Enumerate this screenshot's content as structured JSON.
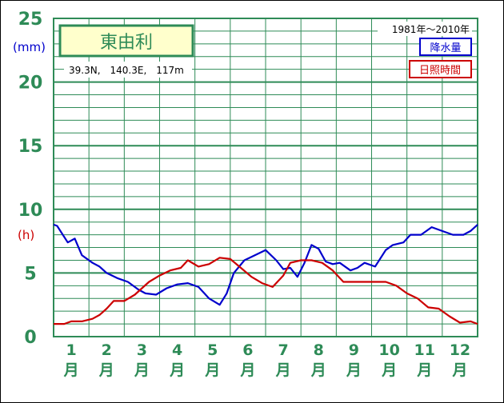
{
  "colors": {
    "grid": "#2e8b57",
    "precipitation": "#0000cc",
    "sunshine": "#cc0000",
    "station_box_fill": "#ffffcc",
    "axis_text": "#2e8b57"
  },
  "chart_data": {
    "type": "line",
    "station_name": "東由利",
    "location": "39.3N,　140.3E,　117m",
    "period": "1981年～2010年",
    "y_unit_precip": "(mm)",
    "y_unit_sunshine": "(h)",
    "ylim": [
      0,
      25
    ],
    "y_ticks": [
      "0",
      "5",
      "10",
      "15",
      "20",
      "25"
    ],
    "months": [
      {
        "num": "1",
        "unit": "月"
      },
      {
        "num": "2",
        "unit": "月"
      },
      {
        "num": "3",
        "unit": "月"
      },
      {
        "num": "4",
        "unit": "月"
      },
      {
        "num": "5",
        "unit": "月"
      },
      {
        "num": "6",
        "unit": "月"
      },
      {
        "num": "7",
        "unit": "月"
      },
      {
        "num": "8",
        "unit": "月"
      },
      {
        "num": "9",
        "unit": "月"
      },
      {
        "num": "10",
        "unit": "月"
      },
      {
        "num": "11",
        "unit": "月"
      },
      {
        "num": "12",
        "unit": "月"
      }
    ],
    "x_range_months": [
      0.5,
      12.5
    ],
    "legend": {
      "precip": "降水量",
      "sunshine": "日照時間"
    },
    "series": [
      {
        "name": "降水量",
        "key": "precip",
        "x": [
          0.5,
          0.6,
          0.9,
          1.1,
          1.3,
          1.6,
          1.8,
          2.0,
          2.3,
          2.6,
          2.9,
          3.1,
          3.4,
          3.7,
          4.0,
          4.3,
          4.6,
          4.9,
          5.2,
          5.4,
          5.6,
          5.9,
          6.2,
          6.5,
          6.8,
          7.0,
          7.2,
          7.4,
          7.6,
          7.8,
          8.0,
          8.2,
          8.4,
          8.6,
          8.9,
          9.1,
          9.3,
          9.6,
          9.9,
          10.1,
          10.4,
          10.6,
          10.9,
          11.2,
          11.5,
          11.8,
          12.1,
          12.3,
          12.5
        ],
        "y": [
          8.8,
          8.7,
          7.4,
          7.7,
          6.4,
          5.8,
          5.5,
          5.0,
          4.6,
          4.3,
          3.7,
          3.4,
          3.3,
          3.8,
          4.1,
          4.2,
          3.9,
          3.0,
          2.5,
          3.4,
          5.0,
          6.0,
          6.4,
          6.8,
          6.0,
          5.3,
          5.4,
          4.7,
          5.8,
          7.2,
          6.9,
          5.9,
          5.7,
          5.8,
          5.2,
          5.4,
          5.8,
          5.5,
          6.8,
          7.2,
          7.4,
          8.0,
          8.0,
          8.6,
          8.3,
          8.0,
          8.0,
          8.3,
          8.8
        ]
      },
      {
        "name": "日照時間",
        "key": "sunshine",
        "x": [
          0.5,
          0.8,
          1.0,
          1.3,
          1.6,
          1.8,
          2.0,
          2.2,
          2.5,
          2.8,
          3.0,
          3.2,
          3.5,
          3.8,
          4.1,
          4.3,
          4.6,
          4.9,
          5.2,
          5.5,
          5.8,
          6.1,
          6.4,
          6.7,
          7.0,
          7.2,
          7.5,
          7.8,
          8.1,
          8.4,
          8.7,
          9.0,
          9.3,
          9.6,
          9.9,
          10.2,
          10.5,
          10.8,
          11.1,
          11.4,
          11.7,
          12.0,
          12.3,
          12.5
        ],
        "y": [
          1.0,
          1.0,
          1.2,
          1.2,
          1.4,
          1.7,
          2.2,
          2.8,
          2.8,
          3.3,
          3.8,
          4.3,
          4.8,
          5.2,
          5.4,
          6.0,
          5.5,
          5.7,
          6.2,
          6.1,
          5.4,
          4.7,
          4.2,
          3.9,
          4.8,
          5.8,
          6.0,
          6.0,
          5.8,
          5.2,
          4.3,
          4.3,
          4.3,
          4.3,
          4.3,
          4.0,
          3.4,
          3.0,
          2.3,
          2.2,
          1.6,
          1.1,
          1.2,
          1.0
        ]
      }
    ]
  }
}
